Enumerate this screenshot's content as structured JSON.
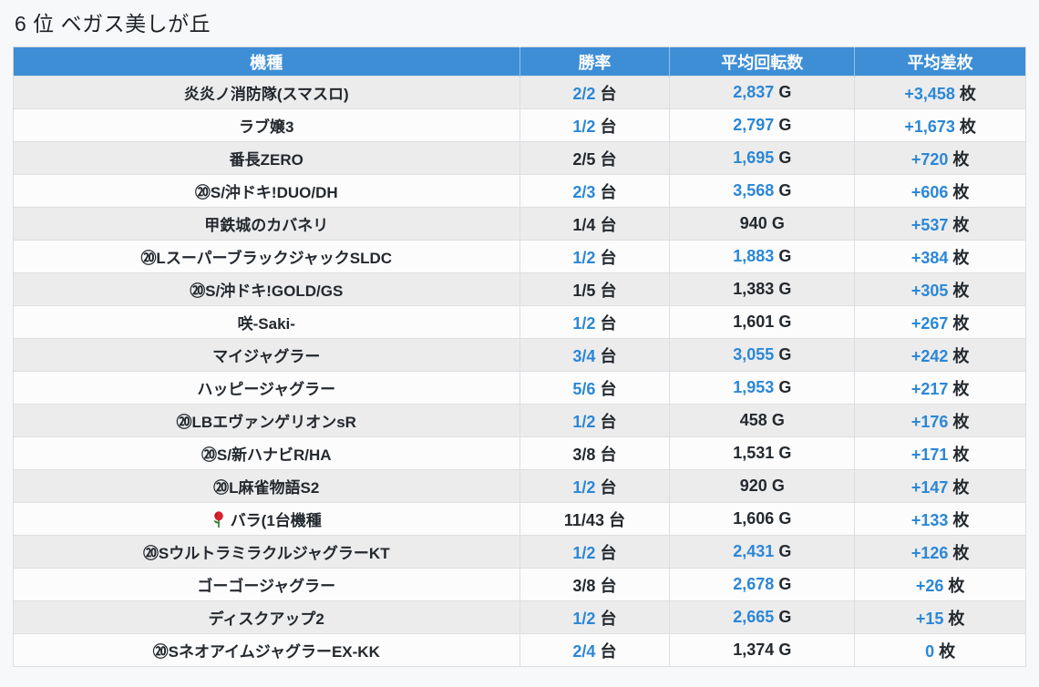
{
  "title": "6 位 ベガス美しが丘",
  "colors": {
    "header_bg": "#3e8ed6",
    "accent_blue_text": "#2b87d6",
    "default_text": "#24292e",
    "row_alt_bg": "#ececed",
    "row_bg": "#fcfcfd",
    "page_bg": "#f7f8fa"
  },
  "table": {
    "headers": [
      "機種",
      "勝率",
      "平均回転数",
      "平均差枚"
    ],
    "units": {
      "win_rate": "台",
      "spins": "G",
      "diff": "枚"
    },
    "rows": [
      {
        "machine": "炎炎ノ消防隊(スマスロ)",
        "icon": null,
        "win_rate": "2/2",
        "win_rate_color": "blue",
        "spins": "2,837",
        "spins_color": "blue",
        "diff": "+3,458",
        "diff_color": "blue"
      },
      {
        "machine": "ラブ嬢3",
        "icon": null,
        "win_rate": "1/2",
        "win_rate_color": "blue",
        "spins": "2,797",
        "spins_color": "blue",
        "diff": "+1,673",
        "diff_color": "blue"
      },
      {
        "machine": "番長ZERO",
        "icon": null,
        "win_rate": "2/5",
        "win_rate_color": "black",
        "spins": "1,695",
        "spins_color": "blue",
        "diff": "+720",
        "diff_color": "blue"
      },
      {
        "machine": "⑳S/沖ドキ!DUO/DH",
        "icon": null,
        "win_rate": "2/3",
        "win_rate_color": "blue",
        "spins": "3,568",
        "spins_color": "blue",
        "diff": "+606",
        "diff_color": "blue"
      },
      {
        "machine": "甲鉄城のカバネリ",
        "icon": null,
        "win_rate": "1/4",
        "win_rate_color": "black",
        "spins": "940",
        "spins_color": "black",
        "diff": "+537",
        "diff_color": "blue"
      },
      {
        "machine": "⑳LスーパーブラックジャックSLDC",
        "icon": null,
        "win_rate": "1/2",
        "win_rate_color": "blue",
        "spins": "1,883",
        "spins_color": "blue",
        "diff": "+384",
        "diff_color": "blue"
      },
      {
        "machine": "⑳S/沖ドキ!GOLD/GS",
        "icon": null,
        "win_rate": "1/5",
        "win_rate_color": "black",
        "spins": "1,383",
        "spins_color": "black",
        "diff": "+305",
        "diff_color": "blue"
      },
      {
        "machine": "咲-Saki-",
        "icon": null,
        "win_rate": "1/2",
        "win_rate_color": "blue",
        "spins": "1,601",
        "spins_color": "black",
        "diff": "+267",
        "diff_color": "blue"
      },
      {
        "machine": "マイジャグラー",
        "icon": null,
        "win_rate": "3/4",
        "win_rate_color": "blue",
        "spins": "3,055",
        "spins_color": "blue",
        "diff": "+242",
        "diff_color": "blue"
      },
      {
        "machine": "ハッピージャグラー",
        "icon": null,
        "win_rate": "5/6",
        "win_rate_color": "blue",
        "spins": "1,953",
        "spins_color": "blue",
        "diff": "+217",
        "diff_color": "blue"
      },
      {
        "machine": "⑳LBエヴァンゲリオンsR",
        "icon": null,
        "win_rate": "1/2",
        "win_rate_color": "blue",
        "spins": "458",
        "spins_color": "black",
        "diff": "+176",
        "diff_color": "blue"
      },
      {
        "machine": "⑳S/新ハナビR/HA",
        "icon": null,
        "win_rate": "3/8",
        "win_rate_color": "black",
        "spins": "1,531",
        "spins_color": "black",
        "diff": "+171",
        "diff_color": "blue"
      },
      {
        "machine": "⑳L麻雀物語S2",
        "icon": null,
        "win_rate": "1/2",
        "win_rate_color": "blue",
        "spins": "920",
        "spins_color": "black",
        "diff": "+147",
        "diff_color": "blue"
      },
      {
        "machine": "バラ(1台機種",
        "icon": "rose",
        "win_rate": "11/43",
        "win_rate_color": "black",
        "spins": "1,606",
        "spins_color": "black",
        "diff": "+133",
        "diff_color": "blue"
      },
      {
        "machine": "⑳SウルトラミラクルジャグラーKT",
        "icon": null,
        "win_rate": "1/2",
        "win_rate_color": "blue",
        "spins": "2,431",
        "spins_color": "blue",
        "diff": "+126",
        "diff_color": "blue"
      },
      {
        "machine": "ゴーゴージャグラー",
        "icon": null,
        "win_rate": "3/8",
        "win_rate_color": "black",
        "spins": "2,678",
        "spins_color": "blue",
        "diff": "+26",
        "diff_color": "blue"
      },
      {
        "machine": "ディスクアップ2",
        "icon": null,
        "win_rate": "1/2",
        "win_rate_color": "blue",
        "spins": "2,665",
        "spins_color": "blue",
        "diff": "+15",
        "diff_color": "blue"
      },
      {
        "machine": "⑳SネオアイムジャグラーEX-KK",
        "icon": null,
        "win_rate": "2/4",
        "win_rate_color": "blue",
        "spins": "1,374",
        "spins_color": "black",
        "diff": "0",
        "diff_color": "blue"
      }
    ]
  }
}
